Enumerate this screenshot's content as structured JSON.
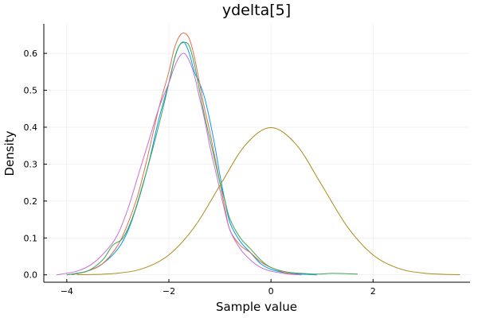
{
  "chart_data": {
    "type": "line",
    "title": "ydelta[5]",
    "xlabel": "Sample value",
    "ylabel": "Density",
    "xlim": [
      -4.45,
      3.9
    ],
    "ylim": [
      -0.02,
      0.68
    ],
    "xticks": [
      -4,
      -2,
      0,
      2
    ],
    "xtick_labels": [
      "−4",
      "−2",
      "0",
      "2"
    ],
    "yticks": [
      0.0,
      0.1,
      0.2,
      0.3,
      0.4,
      0.5,
      0.6
    ],
    "ytick_labels": [
      "0.0",
      "0.1",
      "0.2",
      "0.3",
      "0.4",
      "0.5",
      "0.6"
    ],
    "grid": true,
    "legend": "none",
    "series": [
      {
        "color": "#009AFA",
        "x": [
          -4.0,
          -3.6,
          -3.3,
          -3.0,
          -2.8,
          -2.6,
          -2.4,
          -2.2,
          -2.0,
          -1.9,
          -1.8,
          -1.7,
          -1.6,
          -1.5,
          -1.4,
          -1.3,
          -1.2,
          -1.1,
          -1.0,
          -0.9,
          -0.8,
          -0.6,
          -0.4,
          -0.2,
          0.0,
          0.3,
          0.6,
          0.9
        ],
        "values": [
          0.0,
          0.01,
          0.03,
          0.07,
          0.12,
          0.2,
          0.3,
          0.42,
          0.52,
          0.58,
          0.62,
          0.63,
          0.6,
          0.55,
          0.52,
          0.48,
          0.42,
          0.35,
          0.27,
          0.2,
          0.14,
          0.09,
          0.06,
          0.03,
          0.015,
          0.005,
          0.002,
          0.0
        ]
      },
      {
        "color": "#E36F47",
        "x": [
          -3.9,
          -3.6,
          -3.3,
          -3.0,
          -2.8,
          -2.6,
          -2.4,
          -2.2,
          -2.0,
          -1.9,
          -1.8,
          -1.7,
          -1.6,
          -1.5,
          -1.4,
          -1.3,
          -1.2,
          -1.1,
          -1.0,
          -0.9,
          -0.8,
          -0.6,
          -0.4,
          -0.2,
          0.0,
          0.3,
          0.6
        ],
        "values": [
          0.0,
          0.01,
          0.03,
          0.08,
          0.14,
          0.22,
          0.33,
          0.45,
          0.55,
          0.61,
          0.645,
          0.655,
          0.64,
          0.59,
          0.52,
          0.45,
          0.39,
          0.32,
          0.25,
          0.18,
          0.12,
          0.08,
          0.06,
          0.035,
          0.02,
          0.005,
          0.0
        ]
      },
      {
        "color": "#3EA44E",
        "x": [
          -4.0,
          -3.6,
          -3.3,
          -3.1,
          -2.9,
          -2.7,
          -2.5,
          -2.3,
          -2.1,
          -1.9,
          -1.8,
          -1.7,
          -1.6,
          -1.5,
          -1.4,
          -1.3,
          -1.2,
          -1.1,
          -1.0,
          -0.9,
          -0.8,
          -0.6,
          -0.4,
          -0.2,
          0.0,
          0.3,
          0.6,
          0.9,
          1.2,
          1.5,
          1.7
        ],
        "values": [
          0.0,
          0.01,
          0.04,
          0.08,
          0.1,
          0.16,
          0.25,
          0.35,
          0.46,
          0.58,
          0.62,
          0.63,
          0.62,
          0.57,
          0.5,
          0.43,
          0.37,
          0.31,
          0.25,
          0.2,
          0.15,
          0.1,
          0.07,
          0.04,
          0.02,
          0.008,
          0.004,
          0.002,
          0.004,
          0.003,
          0.002
        ]
      },
      {
        "color": "#C271D2",
        "x": [
          -4.2,
          -3.8,
          -3.5,
          -3.2,
          -3.0,
          -2.8,
          -2.6,
          -2.4,
          -2.2,
          -2.0,
          -1.9,
          -1.8,
          -1.7,
          -1.6,
          -1.5,
          -1.4,
          -1.3,
          -1.2,
          -1.1,
          -1.0,
          -0.9,
          -0.8,
          -0.6,
          -0.4,
          -0.2,
          0.0,
          0.3,
          0.6
        ],
        "values": [
          0.0,
          0.01,
          0.03,
          0.07,
          0.11,
          0.18,
          0.27,
          0.36,
          0.45,
          0.52,
          0.56,
          0.59,
          0.6,
          0.58,
          0.54,
          0.48,
          0.42,
          0.35,
          0.29,
          0.23,
          0.17,
          0.12,
          0.07,
          0.04,
          0.02,
          0.01,
          0.003,
          0.0
        ]
      },
      {
        "color": "#AC8D18",
        "x": [
          -3.8,
          -3.5,
          -3.0,
          -2.5,
          -2.0,
          -1.5,
          -1.0,
          -0.5,
          0.0,
          0.5,
          1.0,
          1.5,
          2.0,
          2.5,
          3.0,
          3.5,
          3.7
        ],
        "values": [
          0.0003,
          0.0009,
          0.0044,
          0.0175,
          0.054,
          0.1295,
          0.242,
          0.352,
          0.399,
          0.352,
          0.242,
          0.1295,
          0.054,
          0.0175,
          0.0044,
          0.0009,
          0.0004
        ]
      }
    ]
  }
}
